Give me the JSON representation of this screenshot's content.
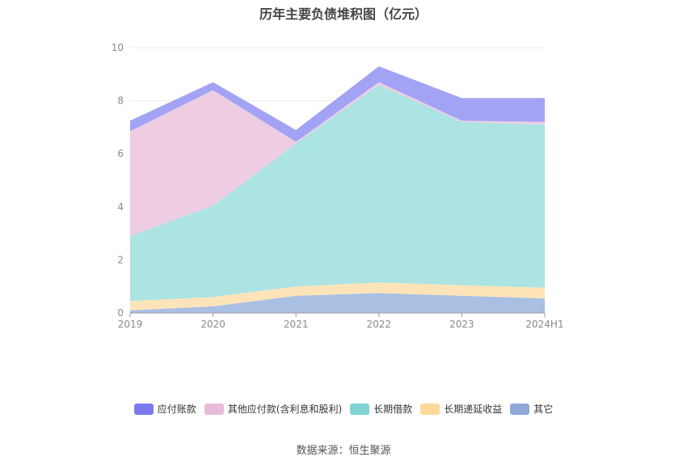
{
  "chart_data": {
    "type": "area",
    "stacked": true,
    "title": "历年主要负债堆积图（亿元）",
    "categories": [
      "2019",
      "2020",
      "2021",
      "2022",
      "2023",
      "2024H1"
    ],
    "ylim": [
      0,
      10
    ],
    "yticks": [
      "0",
      "2",
      "4",
      "6",
      "8",
      "10"
    ],
    "grid": true,
    "legend_position": "bottom",
    "series": [
      {
        "name": "其它",
        "color": "#a9c0e3",
        "values": [
          0.1,
          0.25,
          0.65,
          0.75,
          0.65,
          0.55
        ]
      },
      {
        "name": "长期递延收益",
        "color": "#fde4b8",
        "values": [
          0.35,
          0.35,
          0.35,
          0.4,
          0.4,
          0.4
        ]
      },
      {
        "name": "长期借款",
        "color": "#ace3e3",
        "values": [
          2.45,
          3.45,
          5.4,
          7.45,
          6.15,
          6.15
        ]
      },
      {
        "name": "其他应付款(含利息和股利)",
        "color": "#eecde3",
        "values": [
          3.95,
          4.35,
          0.05,
          0.1,
          0.05,
          0.1
        ]
      },
      {
        "name": "应付账款",
        "color": "#a3a3f5",
        "values": [
          0.4,
          0.3,
          0.45,
          0.6,
          0.85,
          0.9
        ]
      }
    ]
  },
  "legend": [
    {
      "label": "应付账款",
      "color": "#7b7bef"
    },
    {
      "label": "其他应付款(含利息和股利)",
      "color": "#e8bcd9"
    },
    {
      "label": "长期借款",
      "color": "#7fd3d3"
    },
    {
      "label": "长期递延收益",
      "color": "#fcd99a"
    },
    {
      "label": "其它",
      "color": "#8fa9d9"
    }
  ],
  "source": "数据来源：恒生聚源"
}
